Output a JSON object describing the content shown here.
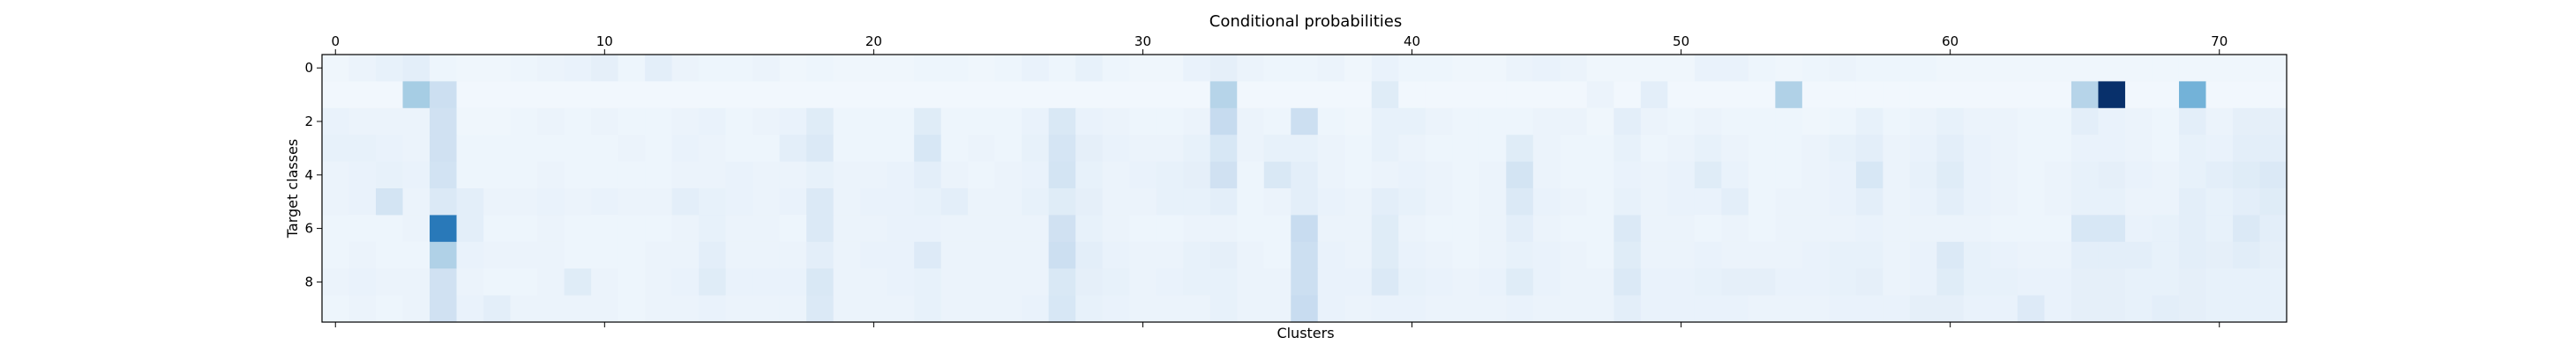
{
  "chart_data": {
    "type": "heatmap",
    "title": "Conditional probabilities",
    "xlabel": "Clusters",
    "ylabel": "Target classes",
    "x_ticks": [
      0,
      10,
      20,
      30,
      40,
      50,
      60,
      70
    ],
    "y_ticks": [
      0,
      2,
      4,
      6,
      8
    ],
    "n_clusters": 73,
    "n_classes": 10,
    "colormap": "Blues",
    "xlim": [
      -0.5,
      72.5
    ],
    "ylim": [
      9.5,
      -0.5
    ],
    "x_ticks_position": "top-and-bottom",
    "grid": false,
    "values": [
      [
        0.04,
        0.06,
        0.08,
        0.1,
        0.05,
        0.04,
        0.04,
        0.05,
        0.06,
        0.07,
        0.09,
        0.05,
        0.1,
        0.06,
        0.05,
        0.05,
        0.06,
        0.04,
        0.05,
        0.04,
        0.04,
        0.04,
        0.05,
        0.05,
        0.04,
        0.05,
        0.07,
        0.05,
        0.08,
        0.05,
        0.04,
        0.04,
        0.07,
        0.09,
        0.06,
        0.05,
        0.05,
        0.06,
        0.04,
        0.07,
        0.05,
        0.05,
        0.04,
        0.04,
        0.06,
        0.07,
        0.06,
        0.04,
        0.04,
        0.04,
        0.04,
        0.07,
        0.07,
        0.05,
        0.04,
        0.05,
        0.06,
        0.05,
        0.05,
        0.05,
        0.04,
        0.04,
        0.04,
        0.04,
        0.04,
        0.04,
        0.04,
        0.04,
        0.04,
        0.04,
        0.04,
        0.04,
        0.04
      ],
      [
        0.03,
        0.03,
        0.03,
        0.35,
        0.22,
        0.03,
        0.03,
        0.03,
        0.03,
        0.03,
        0.03,
        0.03,
        0.03,
        0.03,
        0.03,
        0.03,
        0.03,
        0.03,
        0.03,
        0.03,
        0.03,
        0.03,
        0.03,
        0.03,
        0.03,
        0.03,
        0.03,
        0.03,
        0.03,
        0.03,
        0.03,
        0.03,
        0.03,
        0.3,
        0.03,
        0.03,
        0.03,
        0.03,
        0.03,
        0.12,
        0.03,
        0.03,
        0.03,
        0.03,
        0.03,
        0.03,
        0.03,
        0.06,
        0.03,
        0.1,
        0.03,
        0.03,
        0.03,
        0.03,
        0.32,
        0.03,
        0.03,
        0.03,
        0.03,
        0.03,
        0.03,
        0.03,
        0.03,
        0.03,
        0.03,
        0.3,
        1.0,
        0.03,
        0.03,
        0.48,
        0.03,
        0.03,
        0.03
      ],
      [
        0.07,
        0.06,
        0.06,
        0.06,
        0.2,
        0.04,
        0.04,
        0.05,
        0.06,
        0.05,
        0.06,
        0.05,
        0.05,
        0.06,
        0.07,
        0.05,
        0.06,
        0.07,
        0.12,
        0.05,
        0.05,
        0.05,
        0.12,
        0.05,
        0.05,
        0.05,
        0.07,
        0.15,
        0.07,
        0.06,
        0.05,
        0.05,
        0.06,
        0.25,
        0.06,
        0.05,
        0.22,
        0.05,
        0.04,
        0.08,
        0.08,
        0.06,
        0.05,
        0.05,
        0.05,
        0.06,
        0.06,
        0.04,
        0.1,
        0.06,
        0.05,
        0.06,
        0.05,
        0.05,
        0.05,
        0.04,
        0.05,
        0.08,
        0.05,
        0.06,
        0.08,
        0.06,
        0.06,
        0.05,
        0.05,
        0.1,
        0.07,
        0.06,
        0.05,
        0.1,
        0.06,
        0.09,
        0.09
      ],
      [
        0.08,
        0.08,
        0.07,
        0.06,
        0.2,
        0.05,
        0.05,
        0.05,
        0.05,
        0.05,
        0.05,
        0.06,
        0.05,
        0.07,
        0.06,
        0.05,
        0.05,
        0.1,
        0.14,
        0.05,
        0.05,
        0.05,
        0.16,
        0.05,
        0.06,
        0.05,
        0.08,
        0.17,
        0.09,
        0.07,
        0.06,
        0.06,
        0.08,
        0.16,
        0.06,
        0.08,
        0.08,
        0.06,
        0.05,
        0.08,
        0.06,
        0.05,
        0.05,
        0.05,
        0.12,
        0.06,
        0.05,
        0.05,
        0.08,
        0.05,
        0.06,
        0.08,
        0.06,
        0.05,
        0.05,
        0.06,
        0.08,
        0.1,
        0.06,
        0.07,
        0.1,
        0.07,
        0.06,
        0.05,
        0.05,
        0.07,
        0.07,
        0.06,
        0.05,
        0.08,
        0.07,
        0.1,
        0.1
      ],
      [
        0.06,
        0.07,
        0.08,
        0.07,
        0.19,
        0.05,
        0.05,
        0.05,
        0.06,
        0.05,
        0.05,
        0.05,
        0.05,
        0.06,
        0.06,
        0.07,
        0.06,
        0.06,
        0.08,
        0.06,
        0.06,
        0.07,
        0.1,
        0.06,
        0.05,
        0.06,
        0.07,
        0.18,
        0.08,
        0.06,
        0.07,
        0.08,
        0.09,
        0.2,
        0.05,
        0.15,
        0.1,
        0.06,
        0.05,
        0.06,
        0.07,
        0.06,
        0.05,
        0.06,
        0.18,
        0.06,
        0.05,
        0.05,
        0.07,
        0.06,
        0.07,
        0.12,
        0.07,
        0.05,
        0.05,
        0.06,
        0.07,
        0.16,
        0.06,
        0.08,
        0.12,
        0.07,
        0.06,
        0.05,
        0.06,
        0.08,
        0.09,
        0.07,
        0.06,
        0.08,
        0.1,
        0.12,
        0.14
      ],
      [
        0.06,
        0.07,
        0.18,
        0.06,
        0.14,
        0.1,
        0.06,
        0.06,
        0.07,
        0.06,
        0.07,
        0.06,
        0.06,
        0.1,
        0.08,
        0.07,
        0.06,
        0.07,
        0.14,
        0.06,
        0.07,
        0.07,
        0.08,
        0.1,
        0.06,
        0.06,
        0.08,
        0.12,
        0.09,
        0.06,
        0.06,
        0.08,
        0.08,
        0.1,
        0.05,
        0.06,
        0.1,
        0.07,
        0.06,
        0.1,
        0.08,
        0.06,
        0.05,
        0.06,
        0.14,
        0.07,
        0.06,
        0.05,
        0.08,
        0.06,
        0.07,
        0.07,
        0.1,
        0.05,
        0.06,
        0.06,
        0.07,
        0.1,
        0.06,
        0.07,
        0.1,
        0.07,
        0.06,
        0.05,
        0.06,
        0.08,
        0.08,
        0.06,
        0.06,
        0.1,
        0.08,
        0.1,
        0.12
      ],
      [
        0.05,
        0.05,
        0.05,
        0.06,
        0.72,
        0.1,
        0.05,
        0.05,
        0.06,
        0.05,
        0.05,
        0.05,
        0.05,
        0.06,
        0.08,
        0.06,
        0.06,
        0.05,
        0.14,
        0.06,
        0.06,
        0.07,
        0.07,
        0.06,
        0.06,
        0.06,
        0.06,
        0.2,
        0.08,
        0.06,
        0.05,
        0.05,
        0.06,
        0.06,
        0.05,
        0.05,
        0.24,
        0.06,
        0.06,
        0.12,
        0.06,
        0.05,
        0.05,
        0.06,
        0.1,
        0.06,
        0.05,
        0.05,
        0.14,
        0.06,
        0.06,
        0.05,
        0.06,
        0.05,
        0.06,
        0.06,
        0.06,
        0.07,
        0.06,
        0.06,
        0.06,
        0.06,
        0.05,
        0.05,
        0.05,
        0.16,
        0.16,
        0.07,
        0.08,
        0.1,
        0.08,
        0.14,
        0.1
      ],
      [
        0.05,
        0.06,
        0.05,
        0.05,
        0.32,
        0.07,
        0.06,
        0.06,
        0.06,
        0.05,
        0.05,
        0.05,
        0.06,
        0.06,
        0.1,
        0.06,
        0.06,
        0.06,
        0.1,
        0.06,
        0.07,
        0.07,
        0.13,
        0.06,
        0.06,
        0.06,
        0.06,
        0.22,
        0.1,
        0.07,
        0.06,
        0.06,
        0.08,
        0.09,
        0.06,
        0.05,
        0.22,
        0.07,
        0.06,
        0.12,
        0.07,
        0.06,
        0.05,
        0.06,
        0.08,
        0.07,
        0.06,
        0.05,
        0.12,
        0.06,
        0.06,
        0.07,
        0.06,
        0.06,
        0.06,
        0.07,
        0.08,
        0.08,
        0.06,
        0.07,
        0.14,
        0.08,
        0.07,
        0.06,
        0.06,
        0.1,
        0.1,
        0.1,
        0.08,
        0.1,
        0.09,
        0.11,
        0.09
      ],
      [
        0.06,
        0.07,
        0.06,
        0.06,
        0.2,
        0.06,
        0.05,
        0.05,
        0.06,
        0.12,
        0.06,
        0.05,
        0.06,
        0.07,
        0.12,
        0.07,
        0.07,
        0.07,
        0.15,
        0.06,
        0.06,
        0.07,
        0.08,
        0.06,
        0.06,
        0.06,
        0.06,
        0.15,
        0.09,
        0.08,
        0.06,
        0.07,
        0.08,
        0.08,
        0.06,
        0.06,
        0.22,
        0.07,
        0.07,
        0.14,
        0.08,
        0.07,
        0.06,
        0.07,
        0.12,
        0.07,
        0.06,
        0.06,
        0.14,
        0.07,
        0.07,
        0.08,
        0.09,
        0.09,
        0.07,
        0.07,
        0.08,
        0.09,
        0.06,
        0.07,
        0.12,
        0.08,
        0.08,
        0.07,
        0.07,
        0.09,
        0.09,
        0.08,
        0.08,
        0.09,
        0.08,
        0.08,
        0.08
      ],
      [
        0.05,
        0.06,
        0.05,
        0.06,
        0.2,
        0.07,
        0.1,
        0.06,
        0.06,
        0.06,
        0.06,
        0.05,
        0.06,
        0.06,
        0.07,
        0.06,
        0.06,
        0.06,
        0.14,
        0.06,
        0.06,
        0.06,
        0.08,
        0.06,
        0.06,
        0.06,
        0.07,
        0.16,
        0.08,
        0.07,
        0.06,
        0.06,
        0.06,
        0.08,
        0.06,
        0.06,
        0.24,
        0.07,
        0.06,
        0.07,
        0.07,
        0.06,
        0.06,
        0.06,
        0.07,
        0.06,
        0.06,
        0.06,
        0.1,
        0.07,
        0.07,
        0.07,
        0.07,
        0.06,
        0.06,
        0.06,
        0.07,
        0.07,
        0.07,
        0.09,
        0.09,
        0.07,
        0.07,
        0.13,
        0.07,
        0.09,
        0.09,
        0.08,
        0.1,
        0.09,
        0.08,
        0.08,
        0.08
      ]
    ]
  }
}
